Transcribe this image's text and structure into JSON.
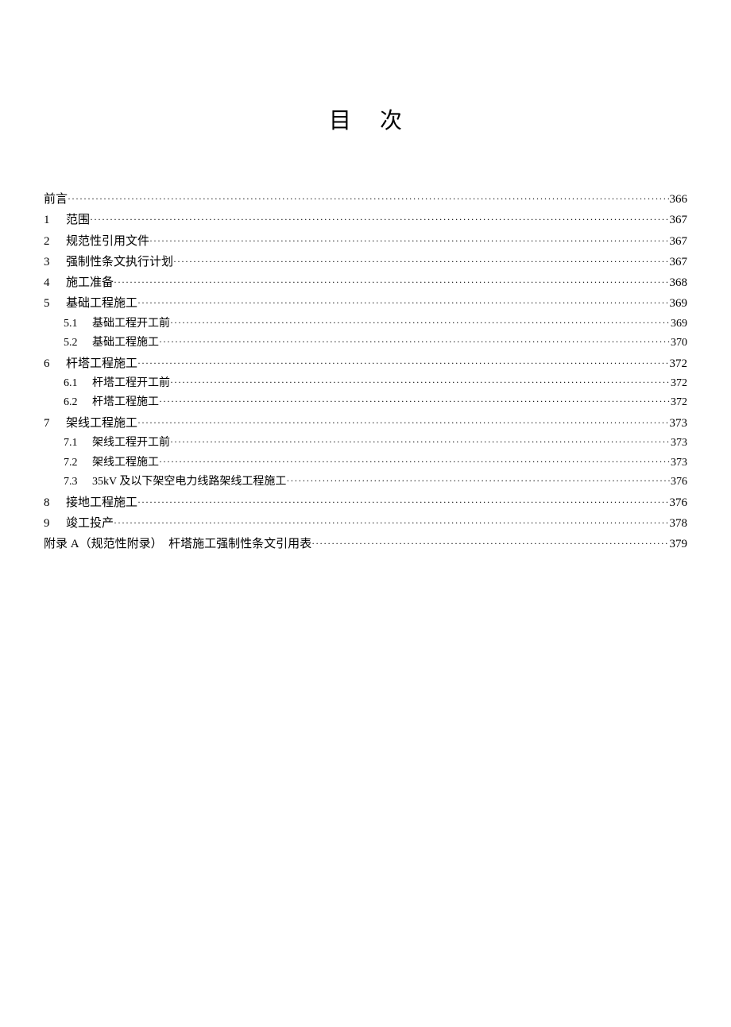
{
  "title": "目次",
  "entries": [
    {
      "level": 1,
      "num": "",
      "label": "前言",
      "page": "366",
      "noindent": true
    },
    {
      "level": 1,
      "num": "1",
      "label": "范围",
      "page": "367"
    },
    {
      "level": 1,
      "num": "2",
      "label": "规范性引用文件",
      "page": "367"
    },
    {
      "level": 1,
      "num": "3",
      "label": "强制性条文执行计划",
      "page": "367"
    },
    {
      "level": 1,
      "num": "4",
      "label": "施工准备",
      "page": "368"
    },
    {
      "level": 1,
      "num": "5",
      "label": "基础工程施工",
      "page": "369"
    },
    {
      "level": 2,
      "num": "5.1",
      "label": "基础工程开工前",
      "page": "369"
    },
    {
      "level": 2,
      "num": "5.2",
      "label": "基础工程施工",
      "page": "370"
    },
    {
      "level": 1,
      "num": "6",
      "label": "杆塔工程施工",
      "page": "372"
    },
    {
      "level": 2,
      "num": "6.1",
      "label": "杆塔工程开工前",
      "page": "372"
    },
    {
      "level": 2,
      "num": "6.2",
      "label": "杆塔工程施工",
      "page": "372"
    },
    {
      "level": 1,
      "num": "7",
      "label": "架线工程施工",
      "page": "373"
    },
    {
      "level": 2,
      "num": "7.1",
      "label": "架线工程开工前",
      "page": "373"
    },
    {
      "level": 2,
      "num": "7.2",
      "label": "架线工程施工",
      "page": "373"
    },
    {
      "level": 2,
      "num": "7.3",
      "label": "35kV 及以下架空电力线路架线工程施工",
      "page": "376"
    },
    {
      "level": 1,
      "num": "8",
      "label": "接地工程施工",
      "page": "376"
    },
    {
      "level": 1,
      "num": "9",
      "label": "竣工投产",
      "page": "378"
    },
    {
      "level": 1,
      "num": "",
      "label": "附录 A（规范性附录）　杆塔施工强制性条文引用表",
      "page": "379",
      "noindent": true
    }
  ],
  "style": {
    "background_color": "#ffffff",
    "text_color": "#000000",
    "title_fontsize": 28,
    "level1_fontsize": 15,
    "level2_fontsize": 14,
    "font_family": "SimSun"
  }
}
